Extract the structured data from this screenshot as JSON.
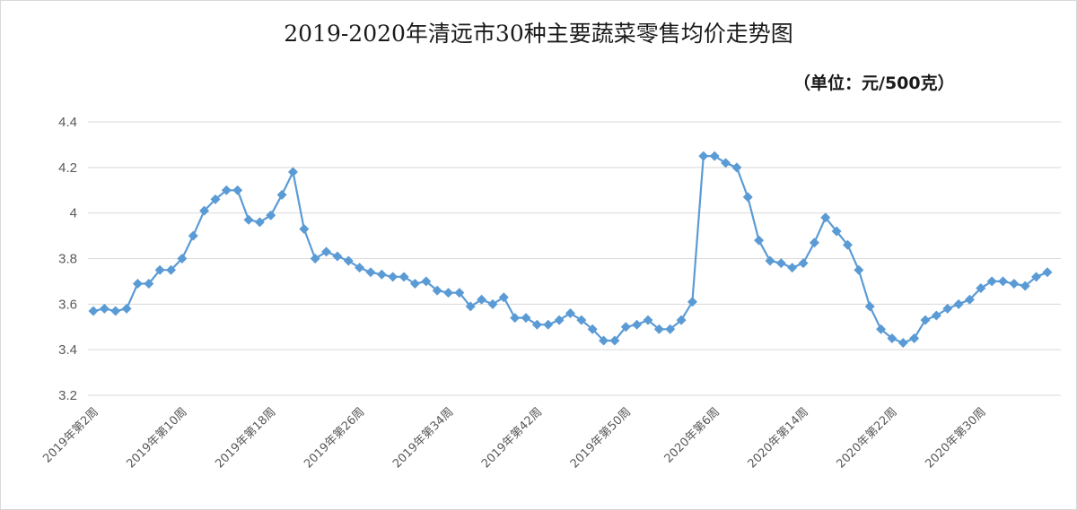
{
  "chart_data": {
    "type": "line",
    "title": "2019-2020年清远市30种主要蔬菜零售均价走势图",
    "subtitle": "（单位：元/500克）",
    "xlabel": "",
    "ylabel": "",
    "ylim": [
      3.2,
      4.4
    ],
    "yticks": [
      3.2,
      3.4,
      3.6,
      3.8,
      4,
      4.2,
      4.4
    ],
    "grid": true,
    "legend": "none",
    "line_color": "#5b9bd5",
    "x_tick_labels": [
      "2019年第2周",
      "2019年第10周",
      "2019年第18周",
      "2019年第26周",
      "2019年第34周",
      "2019年第42周",
      "2019年第50周",
      "2020年第6周",
      "2020年第14周",
      "2020年第22周",
      "2020年第30周"
    ],
    "series": [
      {
        "values": [
          3.57,
          3.58,
          3.57,
          3.58,
          3.69,
          3.69,
          3.75,
          3.75,
          3.8,
          3.9,
          4.01,
          4.06,
          4.1,
          4.1,
          3.97,
          3.96,
          3.99,
          4.08,
          4.18,
          3.93,
          3.8,
          3.83,
          3.81,
          3.79,
          3.76,
          3.74,
          3.73,
          3.72,
          3.72,
          3.69,
          3.7,
          3.66,
          3.65,
          3.65,
          3.59,
          3.62,
          3.6,
          3.63,
          3.54,
          3.54,
          3.51,
          3.51,
          3.53,
          3.56,
          3.53,
          3.49,
          3.44,
          3.44,
          3.5,
          3.51,
          3.53,
          3.49,
          3.49,
          3.53,
          3.61,
          4.25,
          4.25,
          4.22,
          4.2,
          4.07,
          3.88,
          3.79,
          3.78,
          3.76,
          3.78,
          3.87,
          3.98,
          3.92,
          3.86,
          3.75,
          3.59,
          3.49,
          3.45,
          3.43,
          3.45,
          3.53,
          3.55,
          3.58,
          3.6,
          3.62,
          3.67,
          3.7,
          3.7,
          3.69,
          3.68,
          3.72,
          3.74
        ]
      }
    ]
  }
}
